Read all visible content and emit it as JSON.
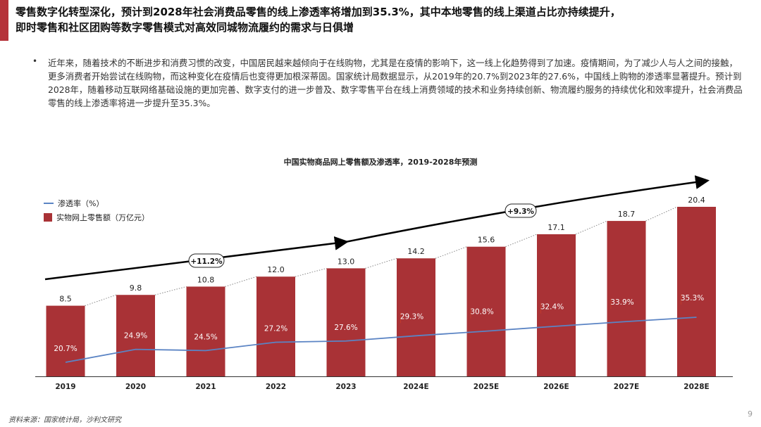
{
  "header": {
    "title_line1": "零售数字化转型深化，预计到2028年社会消费品零售的线上渗透率将增加到35.3%，其中本地零售的线上渠道占比亦持续提升，",
    "title_line2": "即时零售和社区团购等数字零售模式对高效同城物流履约的需求与日俱增"
  },
  "body": {
    "bullet": "•",
    "paragraph": "近年来，随着技术的不断进步和消费习惯的改变，中国居民越来越倾向于在线购物，尤其是在疫情的影响下，这一线上化趋势得到了加速。疫情期间，为了减少人与人之间的接触，更多消费者开始尝试在线购物，而这种变化在疫情后也变得更加根深蒂固。国家统计局数据显示，从2019年的20.7%到2023年的27.6%，中国线上购物的渗透率显著提升。预计到2028年，随着移动互联网络基础设施的更加完善、数字支付的进一步普及、数字零售平台在线上消费领域的技术和业务持续创新、物流履约服务的持续优化和效率提升，社会消费品零售的线上渗透率将进一步提升至35.3%。"
  },
  "chart_data": {
    "type": "bar",
    "title": "中国实物商品网上零售额及渗透率，2019-2028年预测",
    "categories": [
      "2019",
      "2020",
      "2021",
      "2022",
      "2023",
      "2024E",
      "2025E",
      "2026E",
      "2027E",
      "2028E"
    ],
    "series": [
      {
        "name": "实物网上零售额（万亿元）",
        "type": "bar",
        "values": [
          8.5,
          9.8,
          10.8,
          12.0,
          13.0,
          14.2,
          15.6,
          17.1,
          18.7,
          20.4
        ],
        "labels": [
          "8.5",
          "9.8",
          "10.8",
          "12.0",
          "13.0",
          "14.2",
          "15.6",
          "17.1",
          "18.7",
          "20.4"
        ]
      },
      {
        "name": "渗透率（%）",
        "type": "line",
        "values": [
          20.7,
          24.9,
          24.5,
          27.2,
          27.6,
          29.3,
          30.8,
          32.4,
          33.9,
          35.3
        ],
        "labels": [
          "20.7%",
          "24.9%",
          "24.5%",
          "27.2%",
          "27.6%",
          "29.3%",
          "30.8%",
          "32.4%",
          "33.9%",
          "35.3%"
        ]
      }
    ],
    "annotations": [
      {
        "text": "+11.2%",
        "from": "2019",
        "to": "2023"
      },
      {
        "text": "+9.3%",
        "from": "2024E",
        "to": "2028E"
      }
    ],
    "legend_position": "top-left",
    "grid": false,
    "colors": {
      "bar": "#a93236",
      "line": "#5b84c4",
      "arrow": "#000000",
      "label_flag": "#c0392b"
    }
  },
  "footer": {
    "source": "资料来源：国家统计局，沙利文研究",
    "page": "9"
  }
}
